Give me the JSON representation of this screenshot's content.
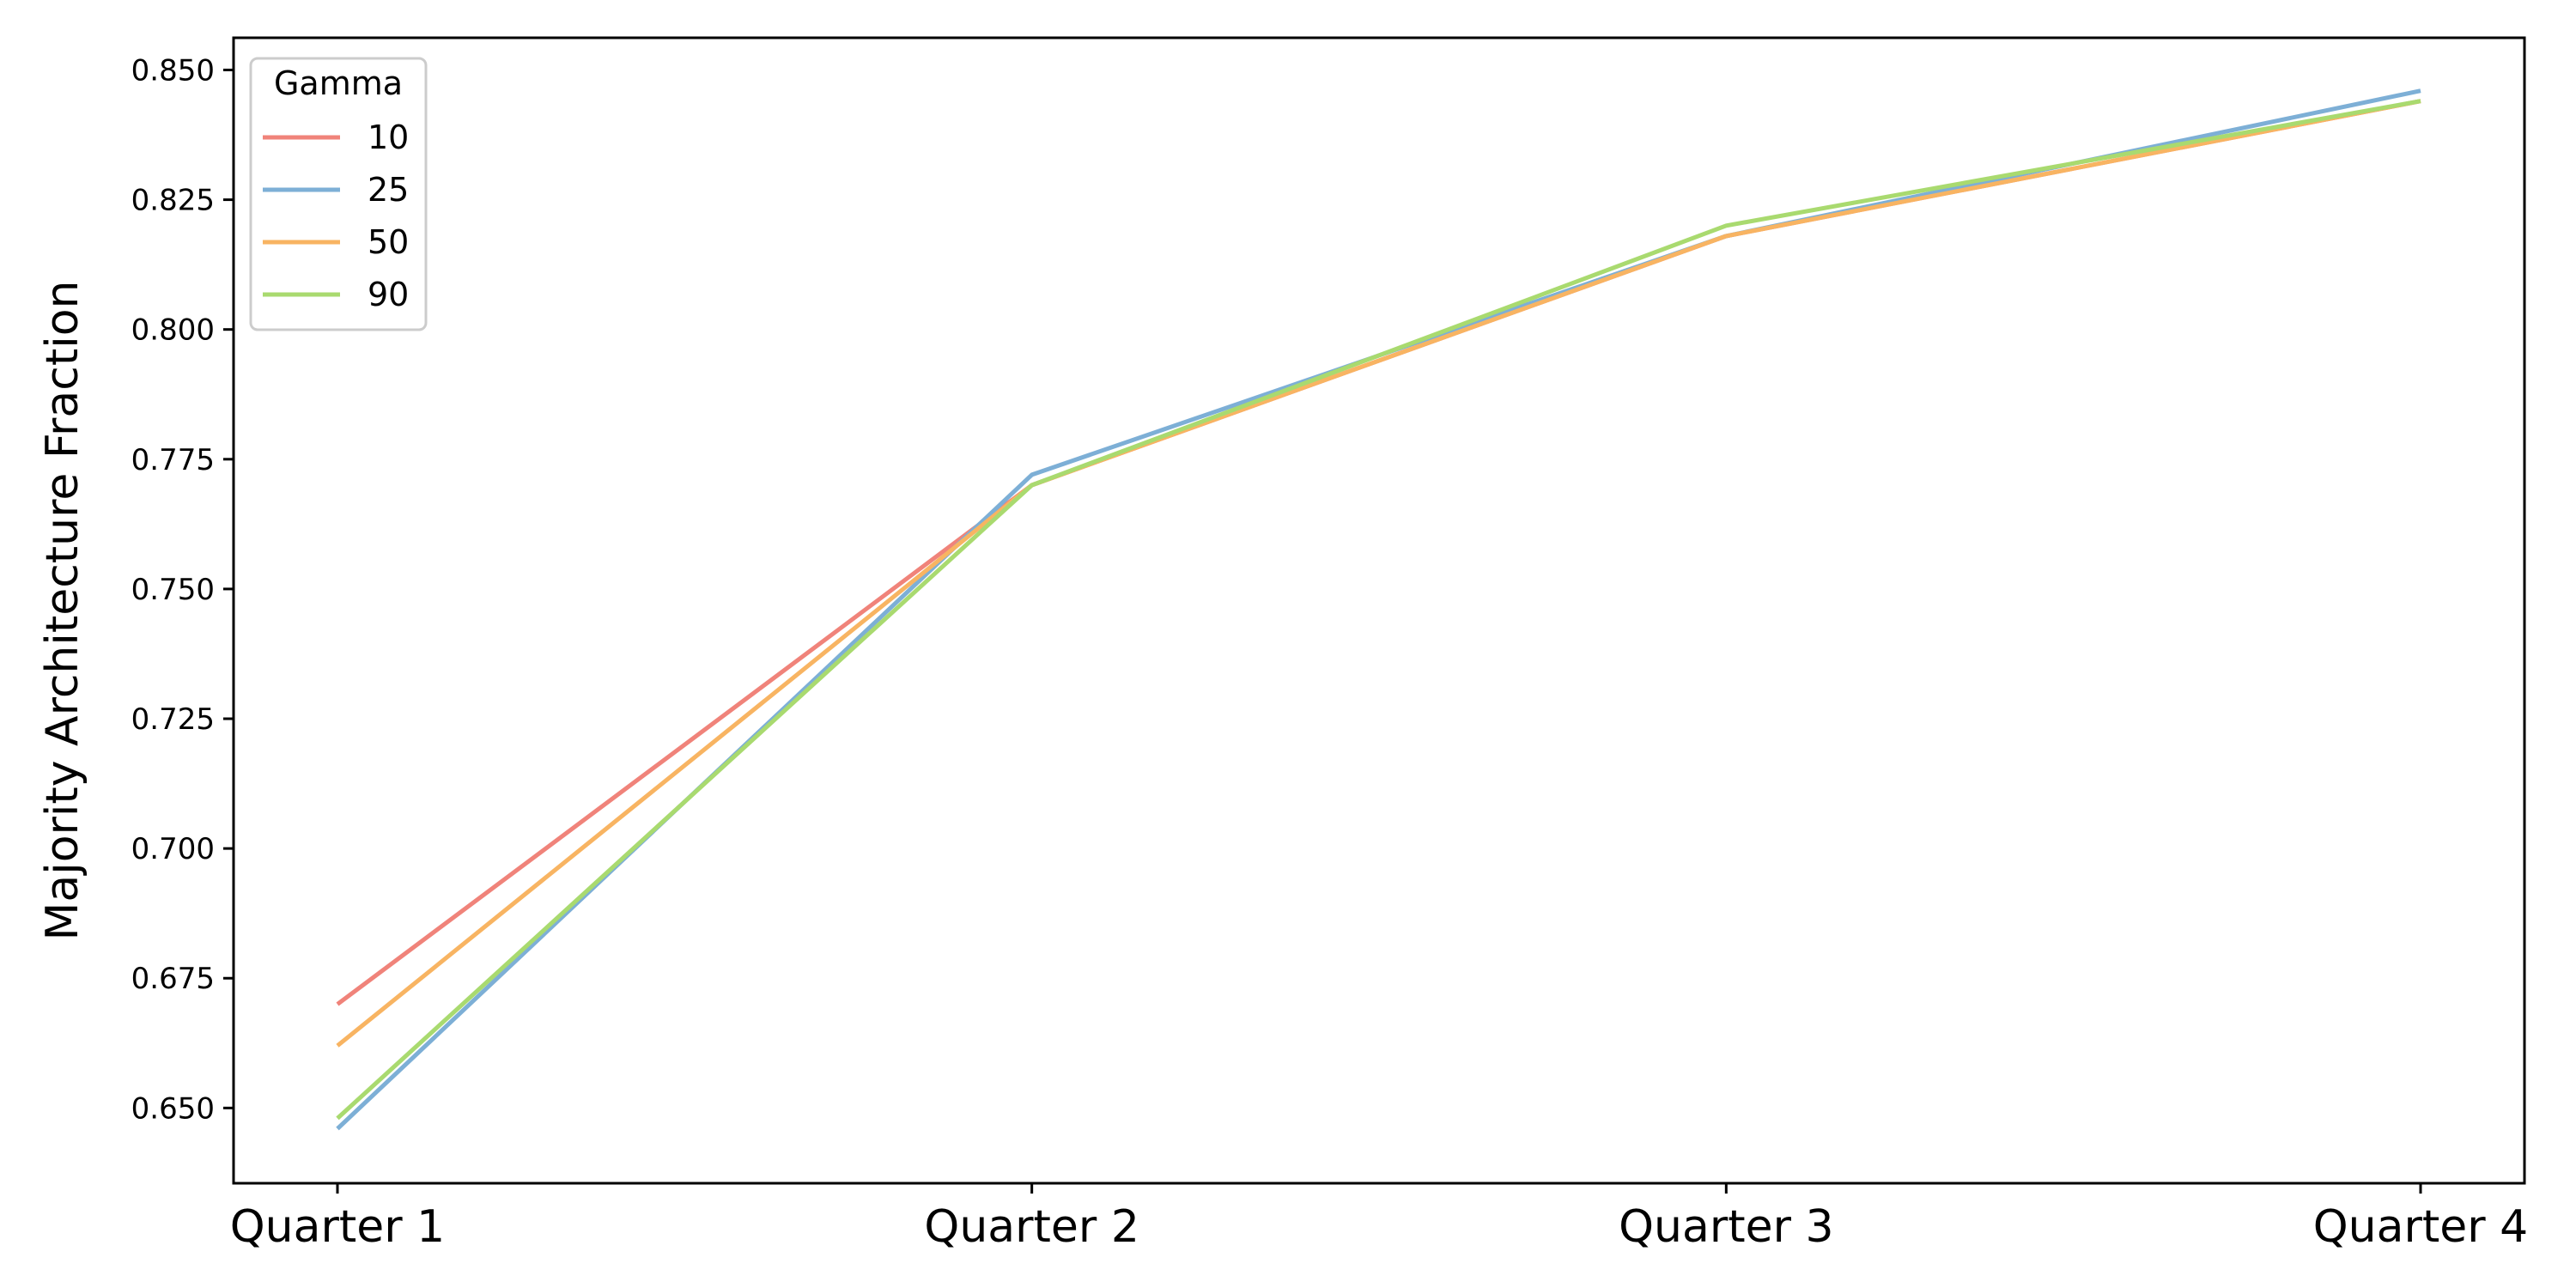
{
  "chart_data": {
    "type": "line",
    "title": "",
    "xlabel": "",
    "ylabel": "Majority Architecture Fraction",
    "categories": [
      "Quarter 1",
      "Quarter 2",
      "Quarter 3",
      "Quarter 4"
    ],
    "ylim": [
      0.6355,
      0.8562
    ],
    "yticks": [
      0.65,
      0.675,
      0.7,
      0.725,
      0.75,
      0.775,
      0.8,
      0.825,
      0.85
    ],
    "ytick_labels": [
      "0.650",
      "0.675",
      "0.700",
      "0.725",
      "0.750",
      "0.775",
      "0.800",
      "0.825",
      "0.850"
    ],
    "grid": false,
    "legend": {
      "title": "Gamma",
      "position": "top-left"
    },
    "series": [
      {
        "name": "10",
        "color": "#f0837a",
        "values": [
          0.67,
          0.77,
          0.818,
          0.844
        ]
      },
      {
        "name": "25",
        "color": "#7dafd6",
        "values": [
          0.646,
          0.772,
          0.818,
          0.846
        ]
      },
      {
        "name": "50",
        "color": "#f8b462",
        "values": [
          0.662,
          0.77,
          0.818,
          0.844
        ]
      },
      {
        "name": "90",
        "color": "#a9da6f",
        "values": [
          0.648,
          0.77,
          0.82,
          0.844
        ]
      }
    ]
  }
}
